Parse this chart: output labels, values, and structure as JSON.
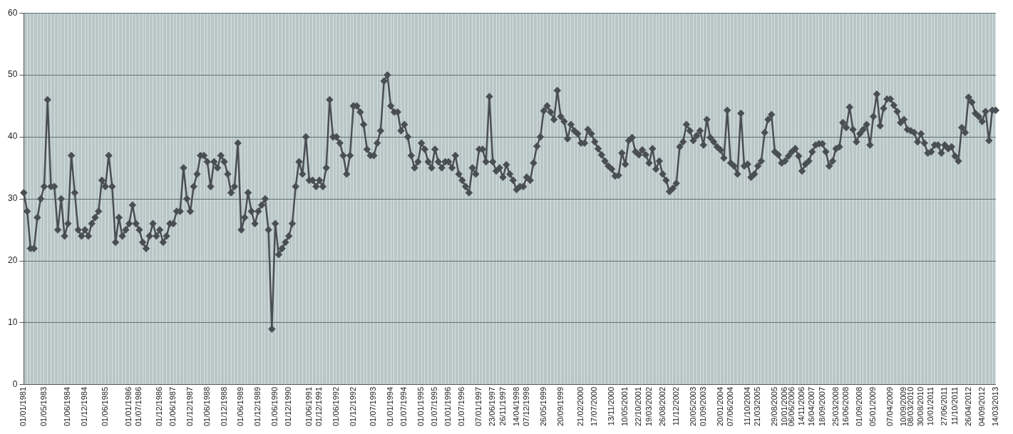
{
  "chart_data": {
    "type": "line",
    "color": "#4a4f55",
    "marker": "diamond",
    "line_style": "solid",
    "grid": true,
    "ylim": [
      0,
      60
    ],
    "yticks": [
      0,
      10,
      20,
      30,
      40,
      50,
      60
    ],
    "categories": [
      "01/01/1981",
      null,
      null,
      null,
      null,
      null,
      "01/05/1983",
      null,
      null,
      null,
      null,
      null,
      null,
      "01/06/1984",
      null,
      null,
      null,
      null,
      "01/12/1984",
      null,
      null,
      null,
      null,
      null,
      "01/06/1985",
      null,
      null,
      null,
      null,
      null,
      null,
      "01/01/1986",
      null,
      null,
      "01/07/1986",
      null,
      null,
      null,
      null,
      null,
      "01/12/1986",
      null,
      null,
      null,
      "01/06/1987",
      null,
      null,
      null,
      null,
      "01/12/1987",
      null,
      null,
      null,
      null,
      "01/06/1988",
      null,
      null,
      null,
      null,
      "01/12/1988",
      null,
      null,
      null,
      null,
      "01/06/1989",
      null,
      null,
      null,
      null,
      "01/12/1989",
      null,
      null,
      null,
      null,
      "01/06/1990",
      null,
      null,
      null,
      "01/12/1990",
      null,
      null,
      null,
      null,
      null,
      "01/06/1991",
      null,
      null,
      "01/12/1991",
      null,
      null,
      null,
      null,
      "01/06/1992",
      null,
      null,
      null,
      null,
      "01/12/1992",
      null,
      null,
      null,
      null,
      null,
      "01/07/1993",
      null,
      null,
      null,
      null,
      "01/01/1994",
      null,
      null,
      null,
      "01/07/1994",
      null,
      null,
      null,
      null,
      "01/01/1995",
      null,
      null,
      null,
      "01/07/1995",
      null,
      null,
      null,
      "01/01/1996",
      null,
      null,
      null,
      "01/07/1996",
      null,
      null,
      null,
      null,
      "07/01/1997",
      null,
      null,
      null,
      "23/06/1997",
      null,
      null,
      "26/11/1997",
      null,
      null,
      null,
      "14/04/1998",
      null,
      null,
      "07/12/1998",
      null,
      null,
      null,
      null,
      "26/05/1999",
      null,
      null,
      null,
      null,
      "20/09/1999",
      null,
      null,
      null,
      null,
      null,
      "21/02/2000",
      null,
      null,
      null,
      "17/07/2000",
      null,
      null,
      null,
      null,
      "13/11/2000",
      null,
      null,
      null,
      "10/05/2001",
      null,
      null,
      null,
      "22/10/2001",
      null,
      null,
      "19/03/2002",
      null,
      null,
      null,
      "26/08/2002",
      null,
      null,
      null,
      "11/12/2002",
      null,
      null,
      null,
      null,
      "20/05/2003",
      null,
      null,
      "01/09/2003",
      null,
      null,
      null,
      null,
      "20/01/2004",
      null,
      null,
      "07/06/2004",
      null,
      null,
      null,
      null,
      "11/10/2004",
      null,
      null,
      "21/03/2005",
      null,
      null,
      null,
      null,
      "29/08/2005",
      null,
      null,
      "10/01/2006",
      null,
      "06/06/2006",
      null,
      null,
      "14/11/2006",
      null,
      null,
      "16/04/2007",
      null,
      null,
      "18/09/2007",
      null,
      null,
      null,
      "25/03/2008",
      null,
      null,
      "16/06/2008",
      null,
      null,
      null,
      "01/09/2008",
      null,
      null,
      null,
      "05/01/2009",
      null,
      null,
      null,
      null,
      "07/04/2009",
      null,
      null,
      null,
      "10/09/2009",
      null,
      "08/03/2010",
      null,
      null,
      "30/08/2010",
      null,
      null,
      "10/01/2011",
      null,
      null,
      null,
      "27/06/2011",
      null,
      null,
      "11/10/2011",
      null,
      null,
      null,
      "26/04/2012",
      null,
      null,
      null,
      "04/09/2012",
      null,
      null,
      null,
      "14/03/2013"
    ],
    "values": [
      31,
      28,
      22,
      22,
      27,
      30,
      32,
      46,
      32,
      32,
      25,
      30,
      24,
      26,
      37,
      31,
      25,
      24,
      25,
      24,
      26,
      27,
      28,
      33,
      32,
      37,
      32,
      23,
      27,
      24,
      25,
      26,
      29,
      26,
      25,
      23,
      22,
      24,
      26,
      24,
      25,
      23,
      24,
      26,
      26,
      28,
      28,
      35,
      30,
      28,
      32,
      34,
      37,
      37,
      36,
      32,
      36,
      35,
      37,
      36,
      34,
      31,
      32,
      39,
      25,
      27,
      31,
      28,
      26,
      28,
      29,
      30,
      25,
      9,
      26,
      21,
      22,
      23,
      24,
      26,
      32,
      36,
      34,
      40,
      33,
      33,
      32,
      33,
      32,
      35,
      46,
      40,
      40,
      39,
      37,
      34,
      37,
      45,
      45,
      44,
      42,
      38,
      37,
      37,
      39,
      41,
      49,
      50,
      45,
      44,
      44,
      41,
      42,
      40,
      37,
      35,
      36,
      39,
      38,
      36,
      35,
      38,
      36,
      35,
      36,
      36,
      35,
      37,
      34,
      33,
      32,
      31,
      35,
      34,
      38,
      38,
      36,
      46.5,
      36,
      34.5,
      35,
      33.5,
      35.5,
      34,
      33,
      31.5,
      32,
      32,
      33.5,
      33,
      35.8,
      38.5,
      40,
      44.2,
      45,
      44,
      42.8,
      47.5,
      43.3,
      42.5,
      39.7,
      42,
      41,
      40.5,
      39,
      39,
      41.2,
      40.5,
      39.2,
      38.1,
      37.1,
      36.1,
      35.3,
      34.8,
      33.7,
      33.8,
      37.4,
      35.6,
      39.4,
      39.9,
      37.6,
      37.1,
      37.9,
      37.1,
      35.8,
      38.1,
      34.8,
      36.1,
      34,
      33,
      31.2,
      31.7,
      32.5,
      38.4,
      39.2,
      42,
      41,
      39.4,
      40.2,
      41,
      38.7,
      42.8,
      39.9,
      39.2,
      38.4,
      37.9,
      36.6,
      44.3,
      35.8,
      35.3,
      34,
      43.8,
      35.3,
      35.6,
      33.5,
      34,
      35.3,
      36.1,
      40.7,
      42.8,
      43.6,
      37.6,
      37.1,
      35.8,
      36.1,
      36.9,
      37.6,
      38.1,
      36.9,
      34.5,
      35.6,
      36.1,
      37.6,
      38.7,
      38.9,
      38.9,
      37.6,
      35.3,
      36.1,
      38.1,
      38.4,
      42.3,
      41.5,
      44.8,
      41.2,
      39.2,
      40.5,
      41.2,
      42,
      38.7,
      43.3,
      46.9,
      41.8,
      44.6,
      46.1,
      46.1,
      45.1,
      44.1,
      42.3,
      42.8,
      41.2,
      41,
      40.7,
      39.2,
      40.5,
      39,
      37.4,
      37.6,
      38.7,
      38.7,
      37.4,
      38.7,
      38.1,
      38.4,
      36.9,
      36.1,
      41.5,
      40.7,
      46.4,
      45.6,
      43.8,
      43.3,
      42.5,
      44.1,
      39.4,
      44.3,
      44.3
    ]
  }
}
